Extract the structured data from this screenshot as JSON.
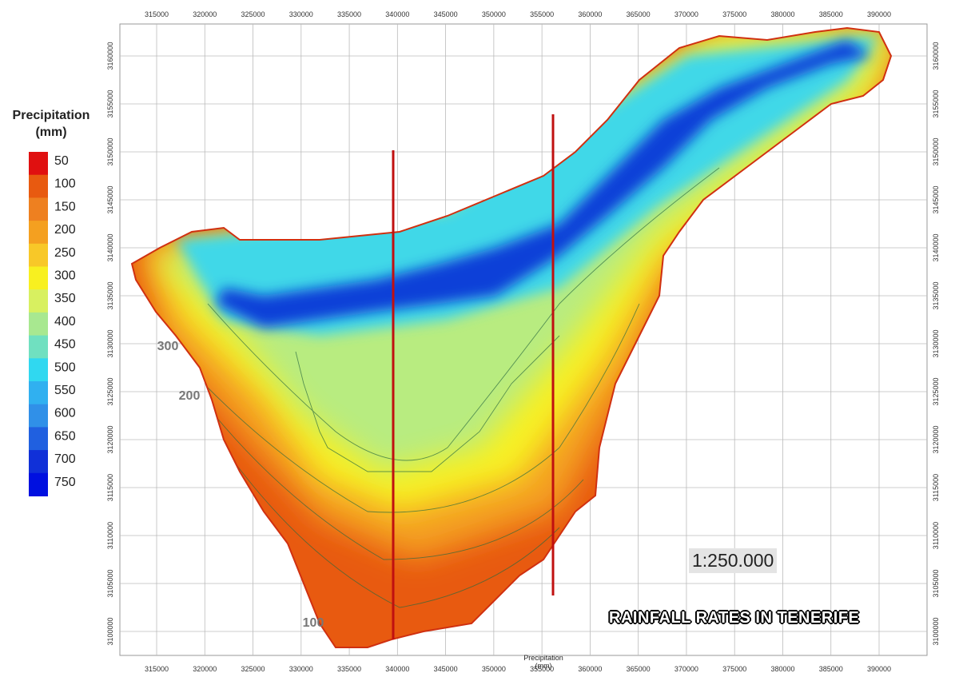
{
  "legend": {
    "title": "Precipitation (mm)",
    "levels": [
      {
        "value": 50,
        "color": "#e01010"
      },
      {
        "value": 100,
        "color": "#e85a10"
      },
      {
        "value": 150,
        "color": "#ee8020"
      },
      {
        "value": 200,
        "color": "#f4a020"
      },
      {
        "value": 250,
        "color": "#f8c828"
      },
      {
        "value": 300,
        "color": "#f8f020"
      },
      {
        "value": 350,
        "color": "#d8f060"
      },
      {
        "value": 400,
        "color": "#a8e890"
      },
      {
        "value": 450,
        "color": "#70e0c0"
      },
      {
        "value": 500,
        "color": "#30d8f0"
      },
      {
        "value": 550,
        "color": "#30b0f0"
      },
      {
        "value": 600,
        "color": "#3090e8"
      },
      {
        "value": 650,
        "color": "#2060e0"
      },
      {
        "value": 700,
        "color": "#1030d8"
      },
      {
        "value": 750,
        "color": "#0010e0"
      }
    ]
  },
  "axes": {
    "x_ticks": [
      315000,
      320000,
      325000,
      330000,
      335000,
      340000,
      345000,
      350000,
      355000,
      360000,
      365000,
      370000,
      375000,
      380000,
      385000,
      390000
    ],
    "y_ticks": [
      3100000,
      3105000,
      3110000,
      3115000,
      3120000,
      3125000,
      3130000,
      3135000,
      3140000,
      3145000,
      3150000,
      3155000,
      3160000
    ]
  },
  "contour_labels": [
    "300",
    "200",
    "100"
  ],
  "scale": "1:250.000",
  "caption": "RAINFALL RATES IN TENERIFE",
  "footer_label": "Precipitation (mm)"
}
